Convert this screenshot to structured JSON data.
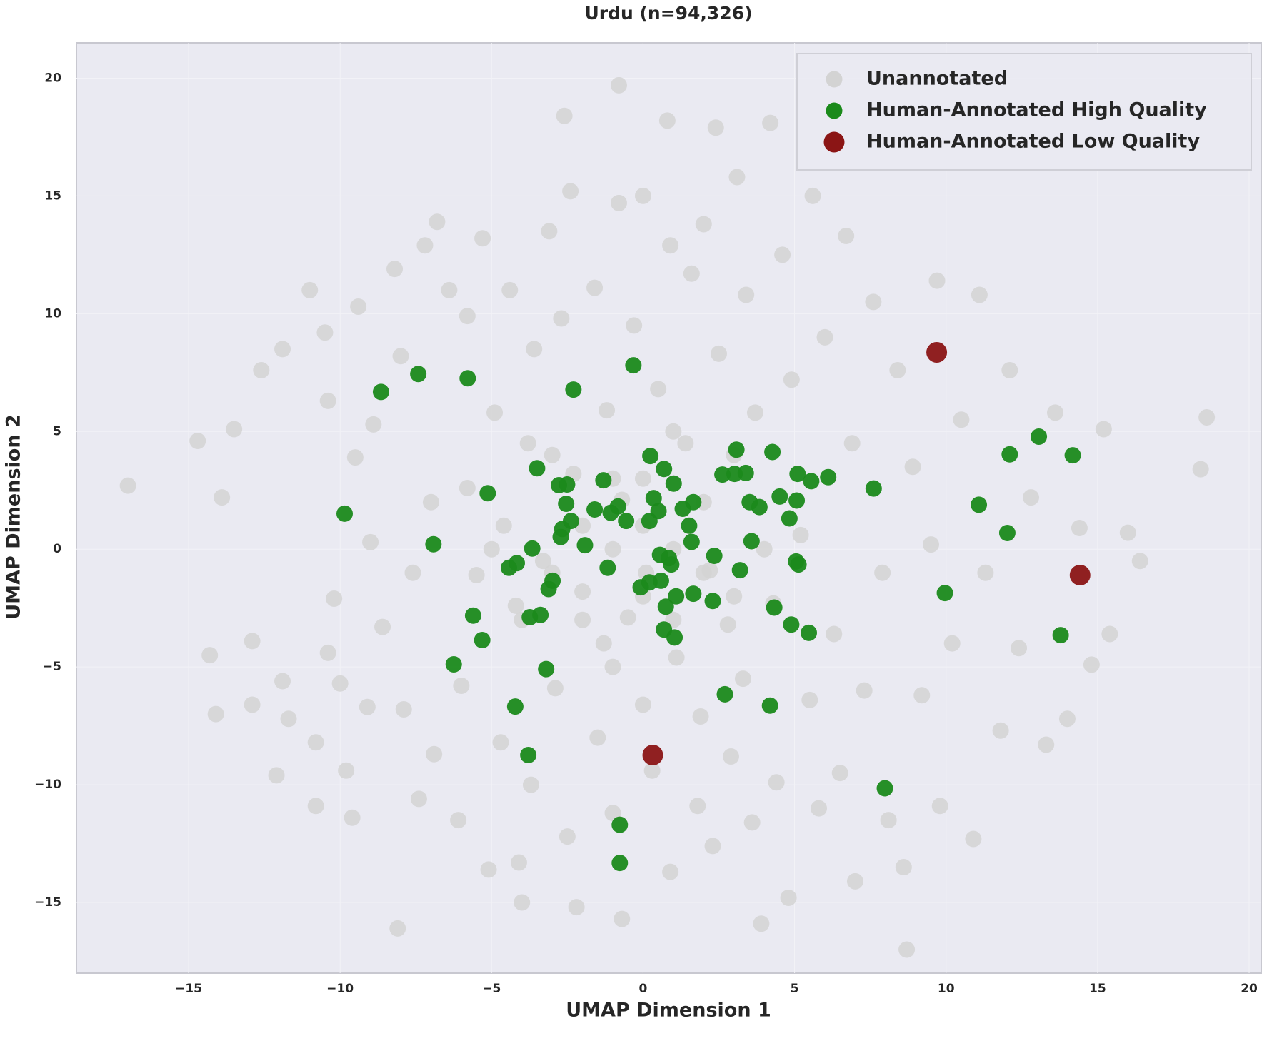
{
  "chart_data": {
    "type": "scatter",
    "title": "Urdu (n=94,326)",
    "x_label": "UMAP Dimension 1",
    "y_label": "UMAP Dimension 2",
    "xlim": [
      -18.7,
      20.4
    ],
    "ylim": [
      -18.0,
      21.5
    ],
    "xticks": [
      {
        "value": -15,
        "label": "−15"
      },
      {
        "value": -10,
        "label": "−10"
      },
      {
        "value": -5,
        "label": "−5"
      },
      0,
      5,
      10,
      15,
      20
    ],
    "yticks": [
      {
        "value": -15,
        "label": "−15"
      },
      {
        "value": -10,
        "label": "−10"
      },
      {
        "value": -5,
        "label": "−5"
      },
      0,
      5,
      10,
      15,
      20
    ],
    "grid": true,
    "legend": "upper right",
    "series": [
      {
        "name": "Unannotated",
        "color": "#d3d3d3",
        "x": [
          -17.0,
          -14.7,
          -14.1,
          -14.3,
          -13.9,
          -13.5,
          -12.9,
          -12.9,
          -12.6,
          -12.1,
          -11.9,
          -11.9,
          -11.7,
          -11.0,
          -10.8,
          -10.8,
          -10.5,
          -10.4,
          -10.4,
          -10.2,
          -10.0,
          -9.8,
          -9.6,
          -9.5,
          -9.4,
          -9.1,
          -9.0,
          -8.9,
          -8.6,
          -8.2,
          -8.0,
          -8.1,
          -7.9,
          -7.6,
          -7.4,
          -7.2,
          -7.0,
          -6.9,
          -6.8,
          -6.4,
          -6.1,
          -6.0,
          -5.8,
          -5.8,
          -5.5,
          -5.3,
          -5.1,
          -4.9,
          -4.7,
          -4.6,
          -4.4,
          -4.2,
          -4.1,
          -4.0,
          -3.8,
          -3.7,
          -3.6,
          -3.3,
          -3.1,
          -2.9,
          -2.7,
          -2.6,
          -2.5,
          -2.4,
          -2.3,
          -2.2,
          -2.0,
          -1.6,
          -1.5,
          -1.3,
          -1.2,
          -1.0,
          -0.8,
          -0.8,
          -0.7,
          -0.7,
          -0.5,
          -0.3,
          0.0,
          0.0,
          0.1,
          0.3,
          0.5,
          0.8,
          0.9,
          0.9,
          1.1,
          1.4,
          1.6,
          1.8,
          1.9,
          2.0,
          2.2,
          2.3,
          2.4,
          2.5,
          2.8,
          2.9,
          3.1,
          3.3,
          3.4,
          3.6,
          3.7,
          3.9,
          4.2,
          4.3,
          4.4,
          4.6,
          4.8,
          4.9,
          5.2,
          5.5,
          5.6,
          5.8,
          6.0,
          6.3,
          6.5,
          6.7,
          6.9,
          7.0,
          7.3,
          7.6,
          7.9,
          8.1,
          8.4,
          8.6,
          8.7,
          8.9,
          9.2,
          9.5,
          9.7,
          9.8,
          10.2,
          10.5,
          10.9,
          11.1,
          11.3,
          11.8,
          12.1,
          12.4,
          12.8,
          13.3,
          13.6,
          14.0,
          14.4,
          14.8,
          15.2,
          15.4,
          16.0,
          16.4,
          18.4,
          18.6,
          -3.0,
          -2.0,
          -1.0,
          0.0,
          1.0,
          2.0,
          -4.0,
          3.0,
          0.0,
          -2.0,
          1.0,
          2.0,
          -1.0,
          4.0,
          -5.0,
          3.0,
          -3.0,
          0.0,
          1.0,
          -1.0
        ],
        "y": [
          2.7,
          4.6,
          -7.0,
          -4.5,
          2.2,
          5.1,
          -3.9,
          -6.6,
          7.6,
          -9.6,
          8.5,
          -5.6,
          -7.2,
          11.0,
          -10.9,
          -8.2,
          9.2,
          6.3,
          -4.4,
          -2.1,
          -5.7,
          -9.4,
          -11.4,
          3.9,
          10.3,
          -6.7,
          0.3,
          5.3,
          -3.3,
          11.9,
          8.2,
          -16.1,
          -6.8,
          -1.0,
          -10.6,
          12.9,
          2.0,
          -8.7,
          13.9,
          11.0,
          -11.5,
          -5.8,
          9.9,
          2.6,
          -1.1,
          13.2,
          -13.6,
          5.8,
          -8.2,
          1.0,
          11.0,
          -2.4,
          -13.3,
          -15.0,
          4.5,
          -10.0,
          8.5,
          -0.5,
          13.5,
          -5.9,
          9.8,
          18.4,
          -12.2,
          15.2,
          3.2,
          -15.2,
          -1.8,
          11.1,
          -8.0,
          -4.0,
          5.9,
          -11.2,
          19.7,
          14.7,
          2.1,
          -15.7,
          -2.9,
          9.5,
          -6.6,
          15.0,
          -1.0,
          -9.4,
          6.8,
          18.2,
          -13.7,
          12.9,
          -4.6,
          4.5,
          11.7,
          -10.9,
          -7.1,
          13.8,
          -0.9,
          -12.6,
          17.9,
          8.3,
          -3.2,
          -8.8,
          15.8,
          -5.5,
          10.8,
          -11.6,
          5.8,
          -15.9,
          18.1,
          -2.3,
          -9.9,
          12.5,
          -14.8,
          7.2,
          0.6,
          -6.4,
          15.0,
          -11.0,
          9.0,
          -3.6,
          -9.5,
          13.3,
          4.5,
          -14.1,
          -6.0,
          10.5,
          -1.0,
          -11.5,
          7.6,
          -13.5,
          -17.0,
          3.5,
          -6.2,
          0.2,
          11.4,
          -10.9,
          -4.0,
          5.5,
          -12.3,
          10.8,
          -1.0,
          -7.7,
          7.6,
          -4.2,
          2.2,
          -8.3,
          5.8,
          -7.2,
          0.9,
          -4.9,
          5.1,
          -3.6,
          0.7,
          -0.5,
          3.4,
          5.6,
          -1.0,
          1.0,
          0.0,
          -2.0,
          0.0,
          2.0,
          -3.0,
          -2.0,
          3.0,
          -3.0,
          -3.0,
          -1.0,
          3.0,
          0.0,
          0.0,
          4.0,
          4.0,
          1.0,
          5.0,
          -5.0
        ]
      },
      {
        "name": "Human-Annotated High Quality",
        "color": "#1b8a1b",
        "x": [
          -8.65,
          -7.42,
          -5.79,
          -2.3,
          -0.32,
          -9.85,
          -6.92,
          -5.13,
          -3.5,
          -2.78,
          -2.51,
          -2.54,
          -2.38,
          -2.67,
          -2.72,
          -1.92,
          -1.6,
          -1.31,
          -0.83,
          -1.07,
          -0.56,
          -1.17,
          -3.66,
          -4.17,
          -4.43,
          -2.99,
          -3.12,
          -3.39,
          -3.74,
          -5.61,
          -5.31,
          -6.25,
          -3.2,
          -4.22,
          -3.79,
          0.24,
          0.69,
          1.01,
          0.35,
          0.51,
          0.21,
          1.31,
          1.66,
          1.52,
          1.6,
          0.56,
          0.85,
          0.93,
          0.21,
          -0.08,
          0.59,
          0.75,
          1.66,
          1.09,
          0.69,
          1.04,
          2.35,
          2.3,
          3.2,
          3.58,
          3.52,
          3.84,
          2.62,
          3.02,
          3.39,
          3.08,
          4.27,
          4.51,
          4.83,
          5.1,
          5.07,
          5.55,
          6.11,
          5.05,
          5.13,
          4.33,
          4.89,
          5.47,
          2.7,
          4.19,
          7.61,
          7.98,
          9.96,
          11.08,
          12.02,
          12.1,
          13.06,
          14.18,
          13.78,
          -0.77,
          -0.77
        ],
        "y": [
          6.68,
          7.44,
          7.26,
          6.78,
          7.81,
          1.51,
          0.21,
          2.38,
          3.44,
          2.72,
          2.75,
          1.93,
          1.2,
          0.86,
          0.52,
          0.17,
          1.69,
          2.93,
          1.82,
          1.55,
          1.2,
          -0.79,
          0.03,
          -0.59,
          -0.79,
          -1.34,
          -1.69,
          -2.79,
          -2.89,
          -2.82,
          -3.86,
          -4.89,
          -5.09,
          -6.68,
          -8.74,
          3.96,
          3.41,
          2.79,
          2.17,
          1.62,
          1.2,
          1.72,
          2.0,
          1.0,
          0.31,
          -0.24,
          -0.38,
          -0.65,
          -1.41,
          -1.62,
          -1.34,
          -2.44,
          -1.89,
          -2.0,
          -3.41,
          -3.75,
          -0.28,
          -2.2,
          -0.89,
          0.34,
          2.0,
          1.79,
          3.17,
          3.2,
          3.24,
          4.23,
          4.13,
          2.24,
          1.31,
          3.2,
          2.07,
          2.89,
          3.06,
          -0.52,
          -0.65,
          -2.48,
          -3.2,
          -3.55,
          -6.16,
          -6.64,
          2.58,
          -10.15,
          -1.86,
          1.89,
          0.69,
          4.03,
          4.78,
          3.99,
          -3.65,
          -11.7,
          -13.32
        ]
      },
      {
        "name": "Human-Annotated Low Quality",
        "color": "#8b1515",
        "x": [
          9.69,
          14.42,
          0.32
        ],
        "y": [
          8.36,
          -1.1,
          -8.74
        ]
      }
    ]
  }
}
